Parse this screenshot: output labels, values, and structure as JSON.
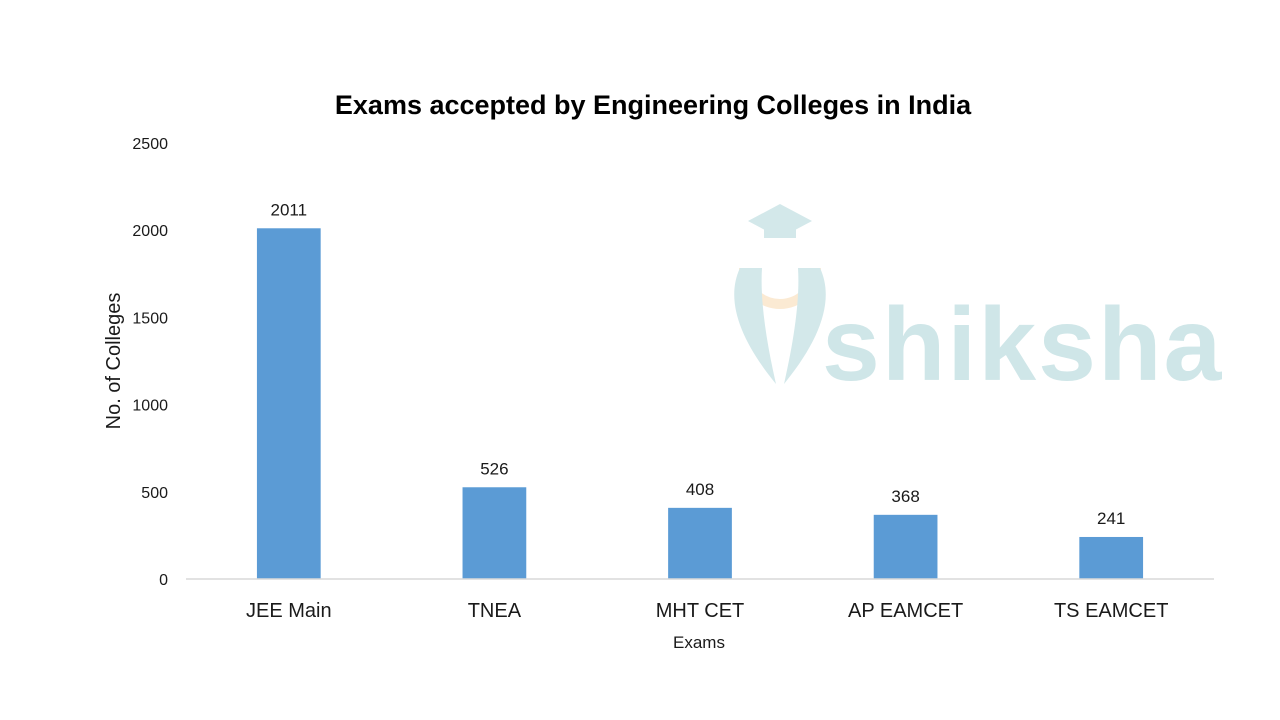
{
  "chart_data": {
    "type": "bar",
    "title": "Exams accepted by Engineering Colleges in India",
    "xlabel": "Exams",
    "ylabel": "No. of Colleges",
    "categories": [
      "JEE Main",
      "TNEA",
      "MHT CET",
      "AP EAMCET",
      "TS EAMCET"
    ],
    "values": [
      2011,
      526,
      408,
      368,
      241
    ],
    "data_labels": [
      "2011",
      "526",
      "408",
      "368",
      "241"
    ],
    "ylim": [
      0,
      2500
    ],
    "yticks": [
      "0",
      "500",
      "1000",
      "1500",
      "2000",
      "2500"
    ],
    "grid": false,
    "legend": "none",
    "bar_color": "#5b9bd5"
  },
  "watermark": {
    "text": "shiksha",
    "icon": "graduation-cap-logo-icon"
  }
}
